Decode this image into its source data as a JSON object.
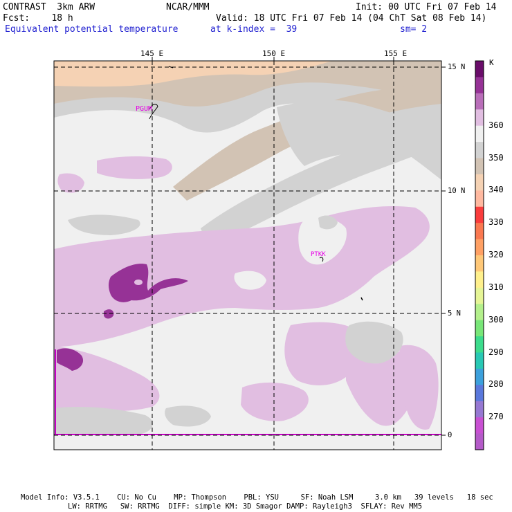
{
  "header": {
    "line1_left": "CONTRAST  3km ARW",
    "line1_center": "NCAR/MMM",
    "line1_right": "Init: 00 UTC Fri 07 Feb 14",
    "line2_left": "Fcst:    18 h",
    "line2_right": "Valid: 18 UTC Fri 07 Feb 14 (04 ChT Sat 08 Feb 14)",
    "line3_field": "Equivalent potential temperature",
    "line3_level": "at k-index =  39",
    "line3_smooth": "sm= 2"
  },
  "map": {
    "lon_labels": [
      "145 E",
      "150 E",
      "155 E"
    ],
    "lat_labels": [
      "15 N",
      "10 N",
      "5 N",
      "0"
    ],
    "stations": [
      "PGUM",
      "PTKK"
    ]
  },
  "legend": {
    "unit": "K",
    "labels": [
      "360",
      "350",
      "340",
      "330",
      "320",
      "310",
      "300",
      "290",
      "280",
      "270"
    ],
    "colors": [
      "#6a0d6a",
      "#963296",
      "#b96eb9",
      "#e1bee1",
      "#f0f0f0",
      "#d2d2d2",
      "#d2c3b4",
      "#f5d2b4",
      "#ffb9a0",
      "#fa3c3c",
      "#fa7850",
      "#ffa064",
      "#ffc878",
      "#fff08c",
      "#e6f596",
      "#b4f08c",
      "#78e678",
      "#3cdc8c",
      "#28c8b4",
      "#3ca0dc",
      "#5a78dc",
      "#9678d2",
      "#c850d2",
      "#b45ac8"
    ]
  },
  "footer": {
    "line1": "Model Info: V3.5.1    CU: No Cu    MP: Thompson    PBL: YSU     SF: Noah LSM     3.0 km   39 levels   18 sec",
    "line2": "LW: RRTMG   SW: RRTMG  DIFF: simple KM: 3D Smagor DAMP: Rayleigh3  SFLAY: Rev MM5"
  }
}
